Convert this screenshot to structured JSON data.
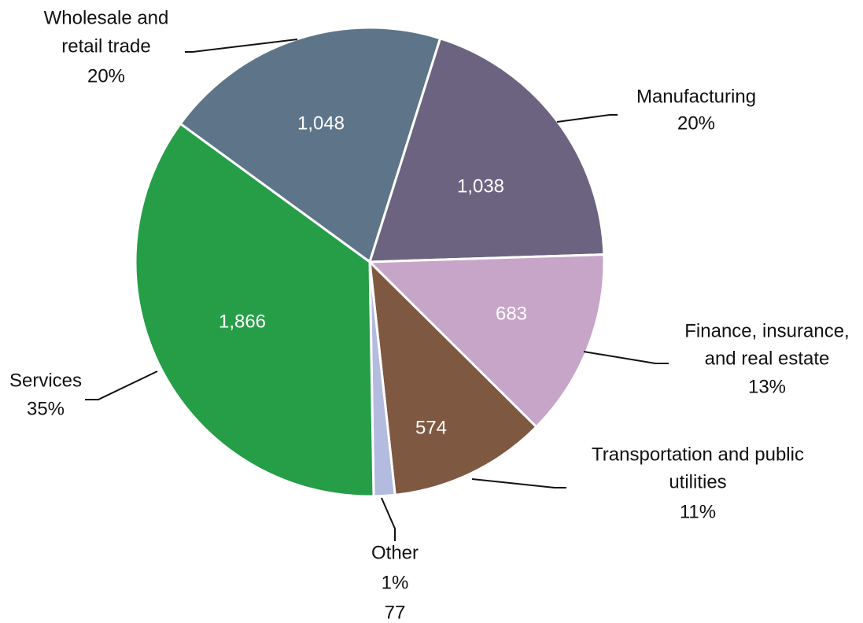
{
  "chart_data": {
    "type": "pie",
    "categories": [
      [
        "Wholesale and",
        "retail trade"
      ],
      [
        "Manufacturing"
      ],
      [
        "Finance, insurance,",
        "and real estate"
      ],
      [
        "Transportation and public",
        "utilities"
      ],
      [
        "Other"
      ],
      [
        "Services"
      ]
    ],
    "values": [
      1048,
      1038,
      683,
      574,
      77,
      1866
    ],
    "value_labels": [
      "1,048",
      "1,038",
      "683",
      "574",
      "77",
      "1,866"
    ],
    "percent_labels": [
      "20%",
      "20%",
      "13%",
      "11%",
      "1%",
      "35%"
    ],
    "colors": [
      "#5e7589",
      "#6c6381",
      "#c7a5c8",
      "#7f5842",
      "#b3bbdf",
      "#259e47"
    ]
  }
}
